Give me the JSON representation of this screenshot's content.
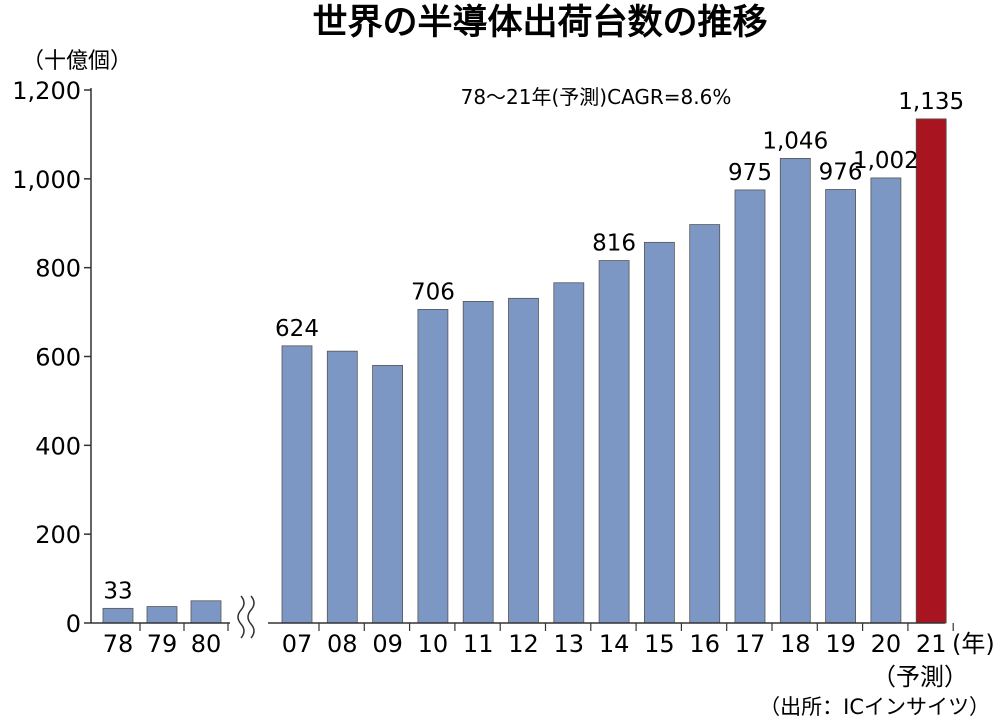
{
  "chart_data": {
    "type": "bar",
    "title": "世界の半導体出荷台数の推移",
    "ylabel": "（十億個）",
    "xlabel": "(年)",
    "annotation": "78～21年(予測)CAGR=8.6%",
    "forecast_note": "（予測）",
    "source": "（出所：ICインサイツ）",
    "ylim": [
      0,
      1200
    ],
    "yticks": [
      0,
      200,
      400,
      600,
      800,
      1000,
      1200
    ],
    "ytick_labels": [
      "0",
      "200",
      "400",
      "600",
      "800",
      "1,000",
      "1,200"
    ],
    "grid": false,
    "axis_break_after": "80",
    "categories": [
      "78",
      "79",
      "80",
      "07",
      "08",
      "09",
      "10",
      "11",
      "12",
      "13",
      "14",
      "15",
      "16",
      "17",
      "18",
      "19",
      "20",
      "21"
    ],
    "values": [
      33,
      37,
      50,
      624,
      612,
      580,
      706,
      724,
      731,
      766,
      816,
      857,
      897,
      975,
      1046,
      976,
      1002,
      1135
    ],
    "data_labels": [
      "33",
      "",
      "",
      "624",
      "",
      "",
      "706",
      "",
      "",
      "",
      "816",
      "",
      "",
      "975",
      "1,046",
      "976",
      "1,002",
      "1,135"
    ],
    "colors": {
      "bar": "#7d97c4",
      "forecast_bar": "#a8141f",
      "bar_edge": "#555555"
    },
    "highlight_index": 17
  }
}
